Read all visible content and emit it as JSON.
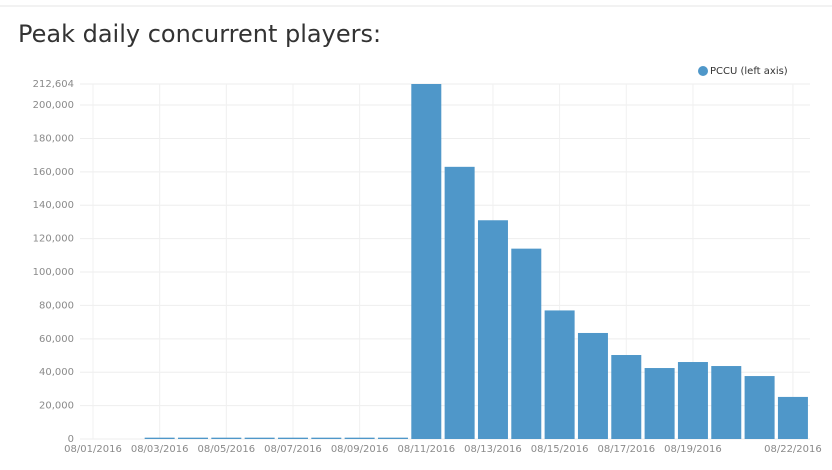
{
  "chart_data": {
    "type": "bar",
    "title": "Peak daily concurrent players:",
    "categories": [
      "08/01/2016",
      null,
      "08/03/2016",
      null,
      "08/05/2016",
      null,
      "08/07/2016",
      null,
      "08/09/2016",
      null,
      "08/11/2016",
      null,
      "08/13/2016",
      null,
      "08/15/2016",
      null,
      "08/17/2016",
      null,
      "08/19/2016",
      null,
      null,
      "08/22/2016"
    ],
    "series": [
      {
        "name": "PCCU (left axis)",
        "color": "#4f97c9",
        "values": [
          0,
          0,
          800,
          800,
          800,
          800,
          800,
          800,
          800,
          800,
          212604,
          163000,
          131000,
          114000,
          77000,
          63500,
          50300,
          42500,
          46100,
          43700,
          37700,
          25200
        ]
      }
    ],
    "ylim": [
      0,
      212604
    ],
    "yticks": [
      0,
      {
        "value": 20000,
        "label": "20,000"
      },
      {
        "value": 40000,
        "label": "40,000"
      },
      {
        "value": 60000,
        "label": "60,000"
      },
      {
        "value": 80000,
        "label": "80,000"
      },
      {
        "value": 100000,
        "label": "100,000"
      },
      {
        "value": 120000,
        "label": "120,000"
      },
      {
        "value": 140000,
        "label": "140,000"
      },
      {
        "value": 160000,
        "label": "160,000"
      },
      {
        "value": 180000,
        "label": "180,000"
      },
      {
        "value": 200000,
        "label": "200,000"
      },
      {
        "value": 212604,
        "label": "212,604"
      }
    ],
    "grid": true,
    "legend": "top-right"
  }
}
